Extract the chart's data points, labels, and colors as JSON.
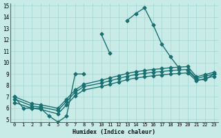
{
  "xlabel": "Humidex (Indice chaleur)",
  "bg_color": "#c8ebe8",
  "line_color": "#1a7070",
  "grid_color": "#a8d8d4",
  "xlim": [
    -0.5,
    23.5
  ],
  "ylim": [
    4.8,
    15.2
  ],
  "xticks": [
    0,
    1,
    2,
    3,
    4,
    5,
    6,
    7,
    8,
    9,
    10,
    11,
    12,
    13,
    14,
    15,
    16,
    17,
    18,
    19,
    20,
    21,
    22,
    23
  ],
  "yticks": [
    5,
    6,
    7,
    8,
    9,
    10,
    11,
    12,
    13,
    14,
    15
  ],
  "main_segments": [
    {
      "x": [
        0,
        1,
        2,
        3,
        4,
        5,
        6,
        7,
        8
      ],
      "y": [
        7.0,
        6.0,
        6.0,
        6.0,
        5.3,
        4.8,
        5.3,
        9.0,
        9.0
      ]
    },
    {
      "x": [
        10,
        11
      ],
      "y": [
        12.5,
        10.8
      ]
    },
    {
      "x": [
        13,
        14,
        15,
        16,
        17,
        18,
        19
      ],
      "y": [
        13.7,
        14.3,
        14.8,
        13.3,
        11.6,
        10.5,
        9.5
      ]
    },
    {
      "x": [
        20,
        21,
        22,
        23
      ],
      "y": [
        9.3,
        8.5,
        8.5,
        9.0
      ]
    }
  ],
  "diag_lines": [
    {
      "x": [
        0,
        2,
        3,
        5,
        6,
        7,
        8,
        10,
        11,
        12,
        13,
        14,
        15,
        16,
        17,
        18,
        19,
        20,
        21,
        22,
        23
      ],
      "y": [
        6.5,
        6.0,
        5.9,
        5.5,
        6.3,
        7.1,
        7.6,
        7.9,
        8.1,
        8.3,
        8.5,
        8.65,
        8.75,
        8.85,
        8.92,
        9.0,
        9.05,
        9.1,
        8.4,
        8.6,
        8.8
      ]
    },
    {
      "x": [
        0,
        2,
        3,
        5,
        6,
        7,
        8,
        10,
        11,
        12,
        13,
        14,
        15,
        16,
        17,
        18,
        19,
        20,
        21,
        22,
        23
      ],
      "y": [
        6.8,
        6.2,
        6.1,
        5.8,
        6.6,
        7.4,
        7.9,
        8.2,
        8.4,
        8.6,
        8.8,
        8.95,
        9.05,
        9.15,
        9.22,
        9.3,
        9.35,
        9.4,
        8.6,
        8.8,
        9.0
      ]
    },
    {
      "x": [
        0,
        2,
        3,
        5,
        6,
        7,
        8,
        10,
        11,
        12,
        13,
        14,
        15,
        16,
        17,
        18,
        19,
        20,
        21,
        22,
        23
      ],
      "y": [
        7.0,
        6.4,
        6.3,
        6.0,
        6.8,
        7.6,
        8.1,
        8.45,
        8.65,
        8.85,
        9.05,
        9.2,
        9.3,
        9.4,
        9.47,
        9.55,
        9.6,
        9.65,
        8.75,
        8.95,
        9.15
      ]
    }
  ],
  "markersize": 2.5,
  "linewidth": 1.0
}
